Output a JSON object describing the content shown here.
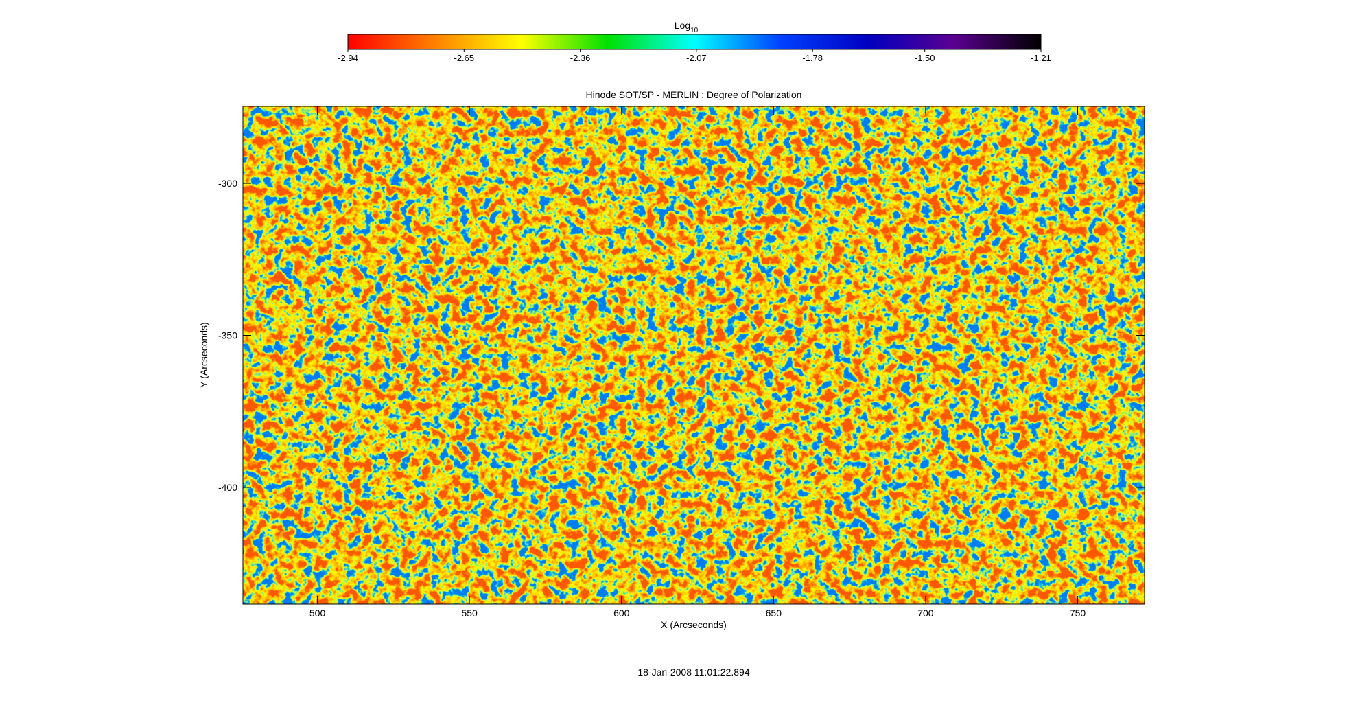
{
  "chart_data": {
    "type": "heatmap",
    "title": "Hinode SOT/SP - MERLIN : Degree of Polarization",
    "x_label": "X (Arcseconds)",
    "y_label": "Y (Arcseconds)",
    "xlim": [
      475.5,
      772
    ],
    "xticks": [
      500,
      550,
      600,
      650,
      700,
      750
    ],
    "ylim": [
      -438.4,
      -274.7
    ],
    "yticks": [
      -300,
      -350,
      -400
    ],
    "colorbar_label": "Log",
    "colorbar_label_subscript": "10",
    "clim": [
      -2.94,
      -1.21
    ],
    "cticks": [
      -2.94,
      -2.65,
      -2.36,
      -2.07,
      -1.78,
      {
        "value": -1.5,
        "label": "-1.50"
      },
      -1.21
    ],
    "colormap": [
      "#ff0000",
      "#ff8000",
      "#ffff00",
      "#00e000",
      "#00ffff",
      "#0040ff",
      "#0000c0",
      "#5a0090",
      "#000000"
    ],
    "footer": "18-Jan-2008 11:01:22.894"
  }
}
